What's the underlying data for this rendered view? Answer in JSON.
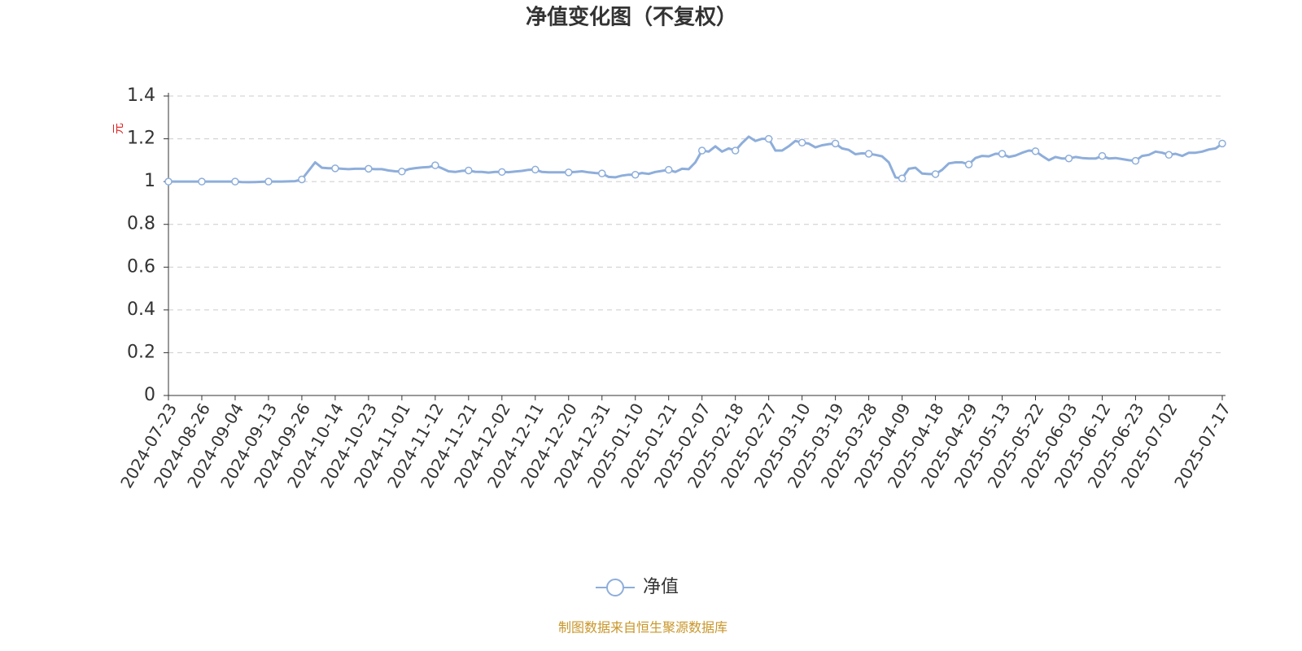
{
  "chart_data": {
    "type": "line",
    "title": "净值变化图（不复权）",
    "y_label": "元",
    "categories": [
      "2024-07-23",
      null,
      null,
      null,
      null,
      "2024-08-26",
      null,
      null,
      null,
      null,
      "2024-09-04",
      null,
      null,
      null,
      null,
      "2024-09-13",
      null,
      null,
      null,
      null,
      "2024-09-26",
      null,
      null,
      null,
      null,
      "2024-10-14",
      null,
      null,
      null,
      null,
      "2024-10-23",
      null,
      null,
      null,
      null,
      "2024-11-01",
      null,
      null,
      null,
      null,
      "2024-11-12",
      null,
      null,
      null,
      null,
      "2024-11-21",
      null,
      null,
      null,
      null,
      "2024-12-02",
      null,
      null,
      null,
      null,
      "2024-12-11",
      null,
      null,
      null,
      null,
      "2024-12-20",
      null,
      null,
      null,
      null,
      "2024-12-31",
      null,
      null,
      null,
      null,
      "2025-01-10",
      null,
      null,
      null,
      null,
      "2025-01-21",
      null,
      null,
      null,
      null,
      "2025-02-07",
      null,
      null,
      null,
      null,
      "2025-02-18",
      null,
      null,
      null,
      null,
      "2025-02-27",
      null,
      null,
      null,
      null,
      "2025-03-10",
      null,
      null,
      null,
      null,
      "2025-03-19",
      null,
      null,
      null,
      null,
      "2025-03-28",
      null,
      null,
      null,
      null,
      "2025-04-09",
      null,
      null,
      null,
      null,
      "2025-04-18",
      null,
      null,
      null,
      null,
      "2025-04-29",
      null,
      null,
      null,
      null,
      "2025-05-13",
      null,
      null,
      null,
      null,
      "2025-05-22",
      null,
      null,
      null,
      null,
      "2025-06-03",
      null,
      null,
      null,
      null,
      "2025-06-12",
      null,
      null,
      null,
      null,
      "2025-06-23",
      null,
      null,
      null,
      null,
      "2025-07-02",
      null,
      null,
      null,
      null,
      null,
      null,
      null,
      "2025-07-17"
    ],
    "series": [
      {
        "name": "净值",
        "color": "#8eaedb",
        "values": [
          1.0,
          1.0,
          1.0,
          1.0,
          1.0,
          1.0,
          1.0,
          1.0,
          1.0,
          1.0,
          1.0,
          0.998,
          0.997,
          0.998,
          0.999,
          1.0,
          1.0,
          1.0,
          1.001,
          1.002,
          1.01,
          1.05,
          1.09,
          1.065,
          1.062,
          1.062,
          1.06,
          1.058,
          1.06,
          1.06,
          1.06,
          1.058,
          1.058,
          1.052,
          1.048,
          1.047,
          1.058,
          1.063,
          1.066,
          1.068,
          1.076,
          1.062,
          1.048,
          1.045,
          1.05,
          1.052,
          1.046,
          1.045,
          1.042,
          1.045,
          1.045,
          1.044,
          1.047,
          1.05,
          1.055,
          1.056,
          1.045,
          1.043,
          1.043,
          1.043,
          1.043,
          1.045,
          1.048,
          1.043,
          1.04,
          1.038,
          1.022,
          1.02,
          1.028,
          1.032,
          1.032,
          1.04,
          1.036,
          1.045,
          1.05,
          1.055,
          1.045,
          1.06,
          1.058,
          1.09,
          1.145,
          1.14,
          1.165,
          1.14,
          1.155,
          1.145,
          1.18,
          1.21,
          1.19,
          1.2,
          1.2,
          1.145,
          1.145,
          1.165,
          1.19,
          1.182,
          1.178,
          1.16,
          1.17,
          1.175,
          1.178,
          1.155,
          1.148,
          1.128,
          1.132,
          1.13,
          1.125,
          1.118,
          1.09,
          1.02,
          1.015,
          1.06,
          1.065,
          1.038,
          1.035,
          1.035,
          1.055,
          1.085,
          1.09,
          1.09,
          1.08,
          1.11,
          1.12,
          1.118,
          1.13,
          1.13,
          1.115,
          1.122,
          1.135,
          1.145,
          1.142,
          1.12,
          1.1,
          1.115,
          1.108,
          1.108,
          1.115,
          1.11,
          1.108,
          1.108,
          1.12,
          1.108,
          1.11,
          1.105,
          1.1,
          1.097,
          1.12,
          1.125,
          1.14,
          1.135,
          1.125,
          1.13,
          1.12,
          1.135,
          1.135,
          1.14,
          1.15,
          1.155,
          1.178
        ]
      }
    ],
    "ylim": [
      0,
      1.4
    ],
    "yticks": [
      0,
      0.2,
      0.4,
      0.6,
      0.8,
      1,
      1.2,
      1.4
    ],
    "grid": true,
    "legend": "bottom",
    "source": "制图数据来自恒生聚源数据库"
  }
}
